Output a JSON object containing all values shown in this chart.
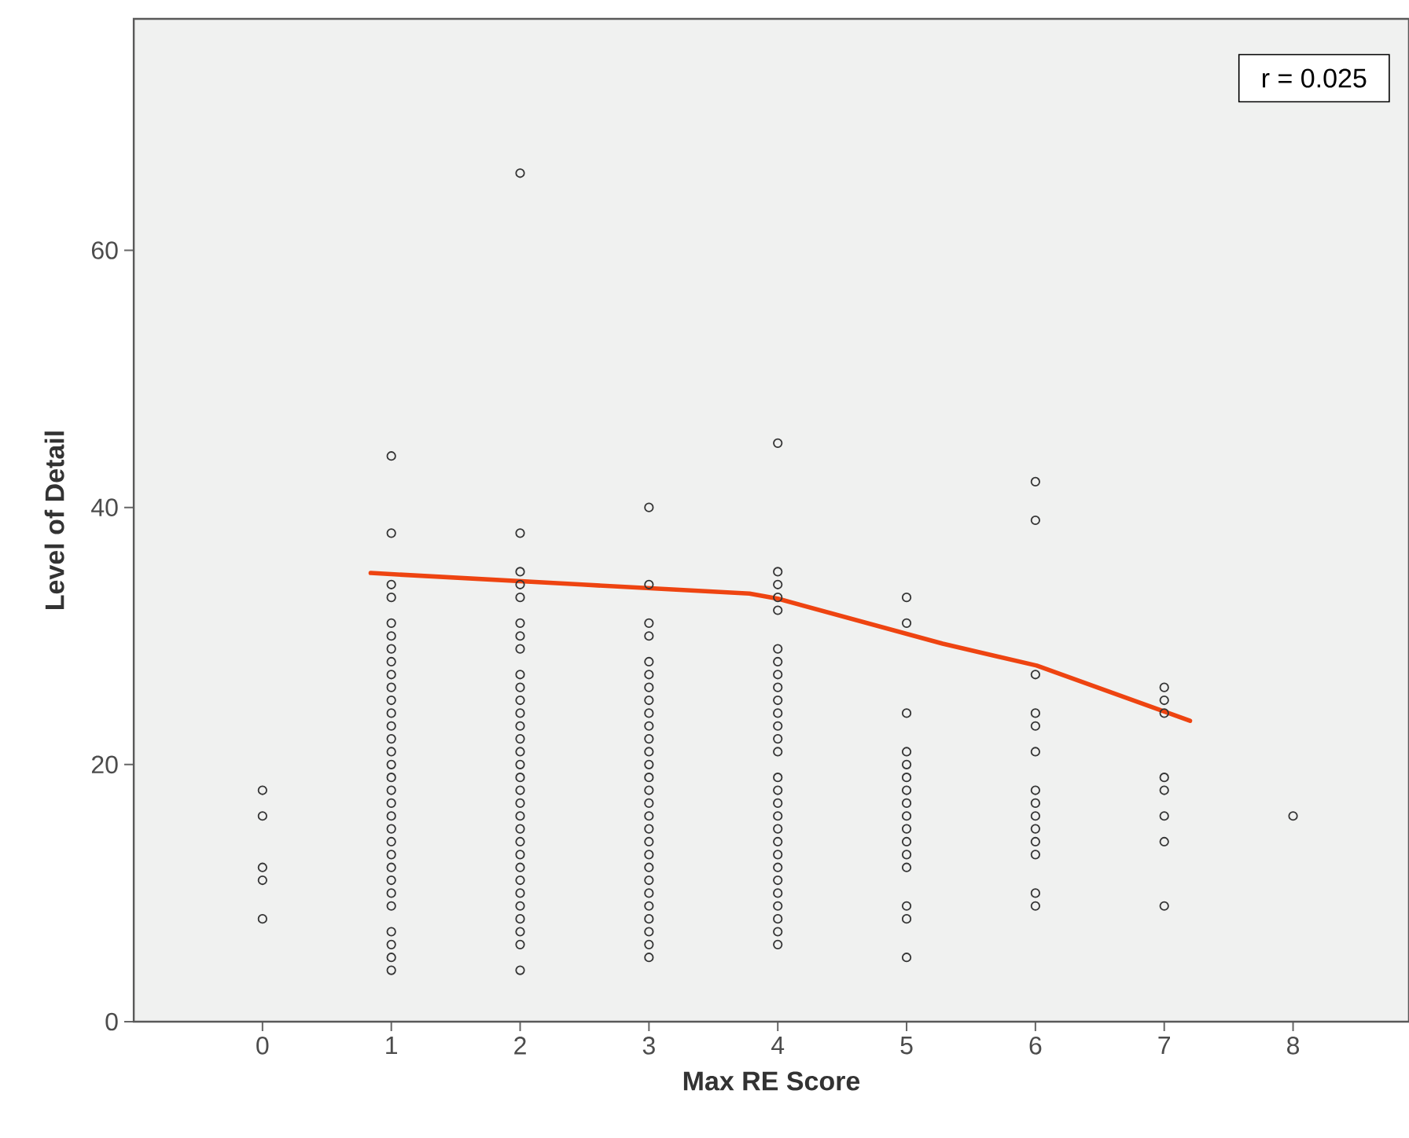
{
  "chart_data": {
    "type": "scatter",
    "xlabel": "Max RE Score",
    "ylabel": "Level of Detail",
    "xlim": [
      -1,
      8.9
    ],
    "ylim": [
      0,
      78
    ],
    "xticks": [
      0,
      1,
      2,
      3,
      4,
      5,
      6,
      7,
      8
    ],
    "yticks": [
      0,
      20,
      40,
      60
    ],
    "annotations": [
      "r = 0.025"
    ],
    "series": [
      {
        "color": "#333333",
        "marker": "circle",
        "x": [
          0,
          0,
          0,
          0,
          0,
          1,
          1,
          1,
          1,
          1,
          1,
          1,
          1,
          1,
          1,
          1,
          1,
          1,
          1,
          1,
          1,
          1,
          1,
          1,
          1,
          1,
          1,
          1,
          1,
          1,
          1,
          1,
          1,
          1,
          1,
          1,
          2,
          2,
          2,
          2,
          2,
          2,
          2,
          2,
          2,
          2,
          2,
          2,
          2,
          2,
          2,
          2,
          2,
          2,
          2,
          2,
          2,
          2,
          2,
          2,
          2,
          2,
          2,
          2,
          2,
          2,
          2,
          3,
          3,
          3,
          3,
          3,
          3,
          3,
          3,
          3,
          3,
          3,
          3,
          3,
          3,
          3,
          3,
          3,
          3,
          3,
          3,
          3,
          3,
          3,
          3,
          3,
          3,
          3,
          3,
          4,
          4,
          4,
          4,
          4,
          4,
          4,
          4,
          4,
          4,
          4,
          4,
          4,
          4,
          4,
          4,
          4,
          4,
          4,
          4,
          4,
          4,
          4,
          4,
          4,
          4,
          4,
          4,
          5,
          5,
          5,
          5,
          5,
          5,
          5,
          5,
          5,
          5,
          5,
          5,
          5,
          5,
          5,
          5,
          6,
          6,
          6,
          6,
          6,
          6,
          6,
          6,
          6,
          6,
          6,
          6,
          6,
          6,
          7,
          7,
          7,
          7,
          7,
          7,
          7,
          7,
          8
        ],
        "values": [
          18,
          16,
          12,
          11,
          8,
          44,
          38,
          34,
          33,
          31,
          30,
          29,
          28,
          27,
          26,
          25,
          24,
          23,
          22,
          21,
          20,
          19,
          18,
          17,
          16,
          15,
          14,
          13,
          12,
          11,
          10,
          9,
          7,
          6,
          5,
          4,
          66,
          38,
          35,
          34,
          33,
          31,
          30,
          29,
          27,
          26,
          25,
          24,
          23,
          22,
          21,
          20,
          19,
          18,
          17,
          16,
          15,
          14,
          13,
          12,
          11,
          10,
          9,
          8,
          7,
          6,
          4,
          40,
          34,
          31,
          30,
          28,
          27,
          26,
          25,
          24,
          23,
          22,
          21,
          20,
          19,
          18,
          17,
          16,
          15,
          14,
          13,
          12,
          11,
          10,
          9,
          8,
          7,
          6,
          5,
          45,
          35,
          34,
          33,
          32,
          29,
          28,
          27,
          26,
          25,
          24,
          23,
          22,
          21,
          19,
          18,
          17,
          16,
          15,
          14,
          13,
          12,
          11,
          10,
          9,
          8,
          7,
          6,
          33,
          31,
          24,
          21,
          20,
          19,
          18,
          17,
          16,
          15,
          14,
          13,
          12,
          9,
          8,
          5,
          42,
          39,
          27,
          24,
          23,
          21,
          18,
          17,
          16,
          15,
          14,
          13,
          10,
          9,
          26,
          25,
          24,
          19,
          18,
          16,
          14,
          9,
          16
        ]
      },
      {
        "type": "line",
        "marker": "none",
        "color": "#ee4411",
        "x": [
          0.84,
          2.48,
          3.78,
          4.0,
          5.28,
          6.01,
          7.2
        ],
        "values": [
          34.9,
          34.0,
          33.3,
          32.9,
          29.4,
          27.7,
          23.4
        ]
      }
    ]
  }
}
